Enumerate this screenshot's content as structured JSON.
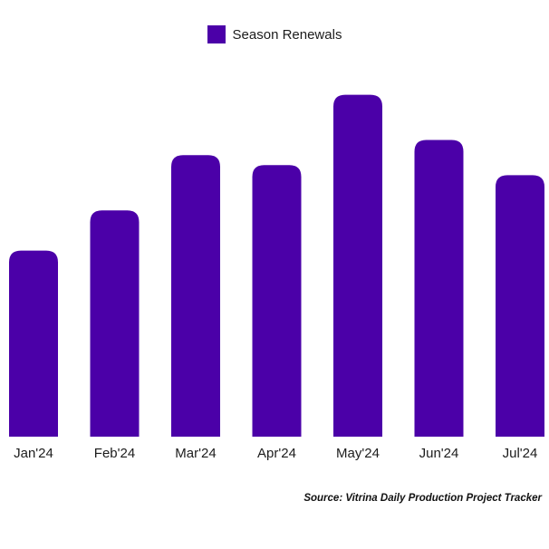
{
  "chart_data": {
    "type": "bar",
    "categories": [
      "Jan'24",
      "Feb'24",
      "Mar'24",
      "Apr'24",
      "May'24",
      "Jun'24",
      "Jul'24"
    ],
    "series": [
      {
        "name": "Season Renewals",
        "values": [
          37,
          45,
          56,
          54,
          68,
          59,
          52
        ],
        "color": "#4b00a8"
      }
    ],
    "ylim": [
      0,
      75
    ],
    "grid": false,
    "legend_position": "top-center"
  },
  "source": "Source: Vitrina Daily Production Project Tracker"
}
